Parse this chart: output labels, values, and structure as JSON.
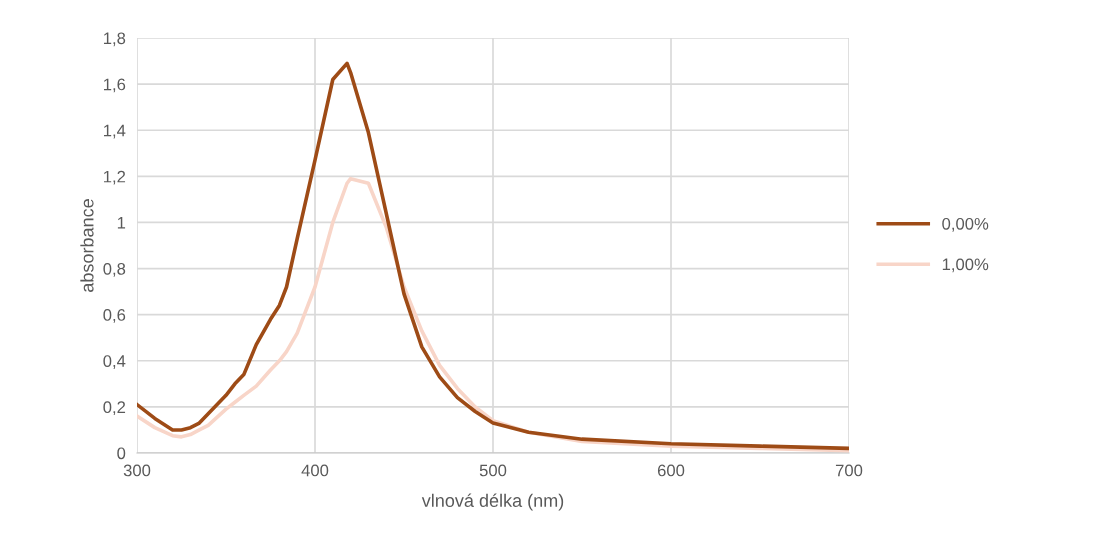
{
  "chart_data": {
    "type": "line",
    "xlabel": "vlnová délka (nm)",
    "ylabel": "absorbance",
    "x": [
      300,
      310,
      320,
      325,
      330,
      335,
      340,
      350,
      355,
      360,
      367,
      375,
      380,
      384,
      390,
      400,
      410,
      418,
      420,
      430,
      440,
      450,
      460,
      470,
      480,
      490,
      500,
      520,
      550,
      600,
      650,
      700
    ],
    "series": [
      {
        "name": "0,00%",
        "color": "#9e4b16",
        "values": [
          0.21,
          0.15,
          0.1,
          0.1,
          0.11,
          0.13,
          0.17,
          0.25,
          0.3,
          0.34,
          0.47,
          0.58,
          0.64,
          0.72,
          0.93,
          1.27,
          1.62,
          1.69,
          1.65,
          1.39,
          1.04,
          0.69,
          0.46,
          0.33,
          0.24,
          0.18,
          0.13,
          0.09,
          0.06,
          0.04,
          0.03,
          0.02
        ]
      },
      {
        "name": "1,00%",
        "color": "#f8d5c8",
        "values": [
          0.16,
          0.11,
          0.075,
          0.07,
          0.08,
          0.1,
          0.12,
          0.19,
          0.22,
          0.25,
          0.29,
          0.36,
          0.4,
          0.44,
          0.52,
          0.72,
          1.0,
          1.17,
          1.19,
          1.17,
          0.98,
          0.72,
          0.53,
          0.38,
          0.28,
          0.2,
          0.14,
          0.09,
          0.05,
          0.03,
          0.02,
          0.01
        ]
      }
    ],
    "xlim": [
      300,
      700
    ],
    "xticks": [
      300,
      400,
      500,
      600,
      700
    ],
    "ylim": [
      0,
      1.8
    ],
    "yticks": [
      0,
      {
        "value": 0.2,
        "label": "0,2"
      },
      {
        "value": 0.4,
        "label": "0,4"
      },
      {
        "value": 0.6,
        "label": "0,6"
      },
      {
        "value": 0.8,
        "label": "0,8"
      },
      1,
      {
        "value": 1.2,
        "label": "1,2"
      },
      {
        "value": 1.4,
        "label": "1,4"
      },
      {
        "value": 1.6,
        "label": "1,6"
      },
      {
        "value": 1.8,
        "label": "1,8"
      }
    ],
    "grid": true,
    "legend": "right",
    "marker": "none",
    "line_style": "solid"
  }
}
